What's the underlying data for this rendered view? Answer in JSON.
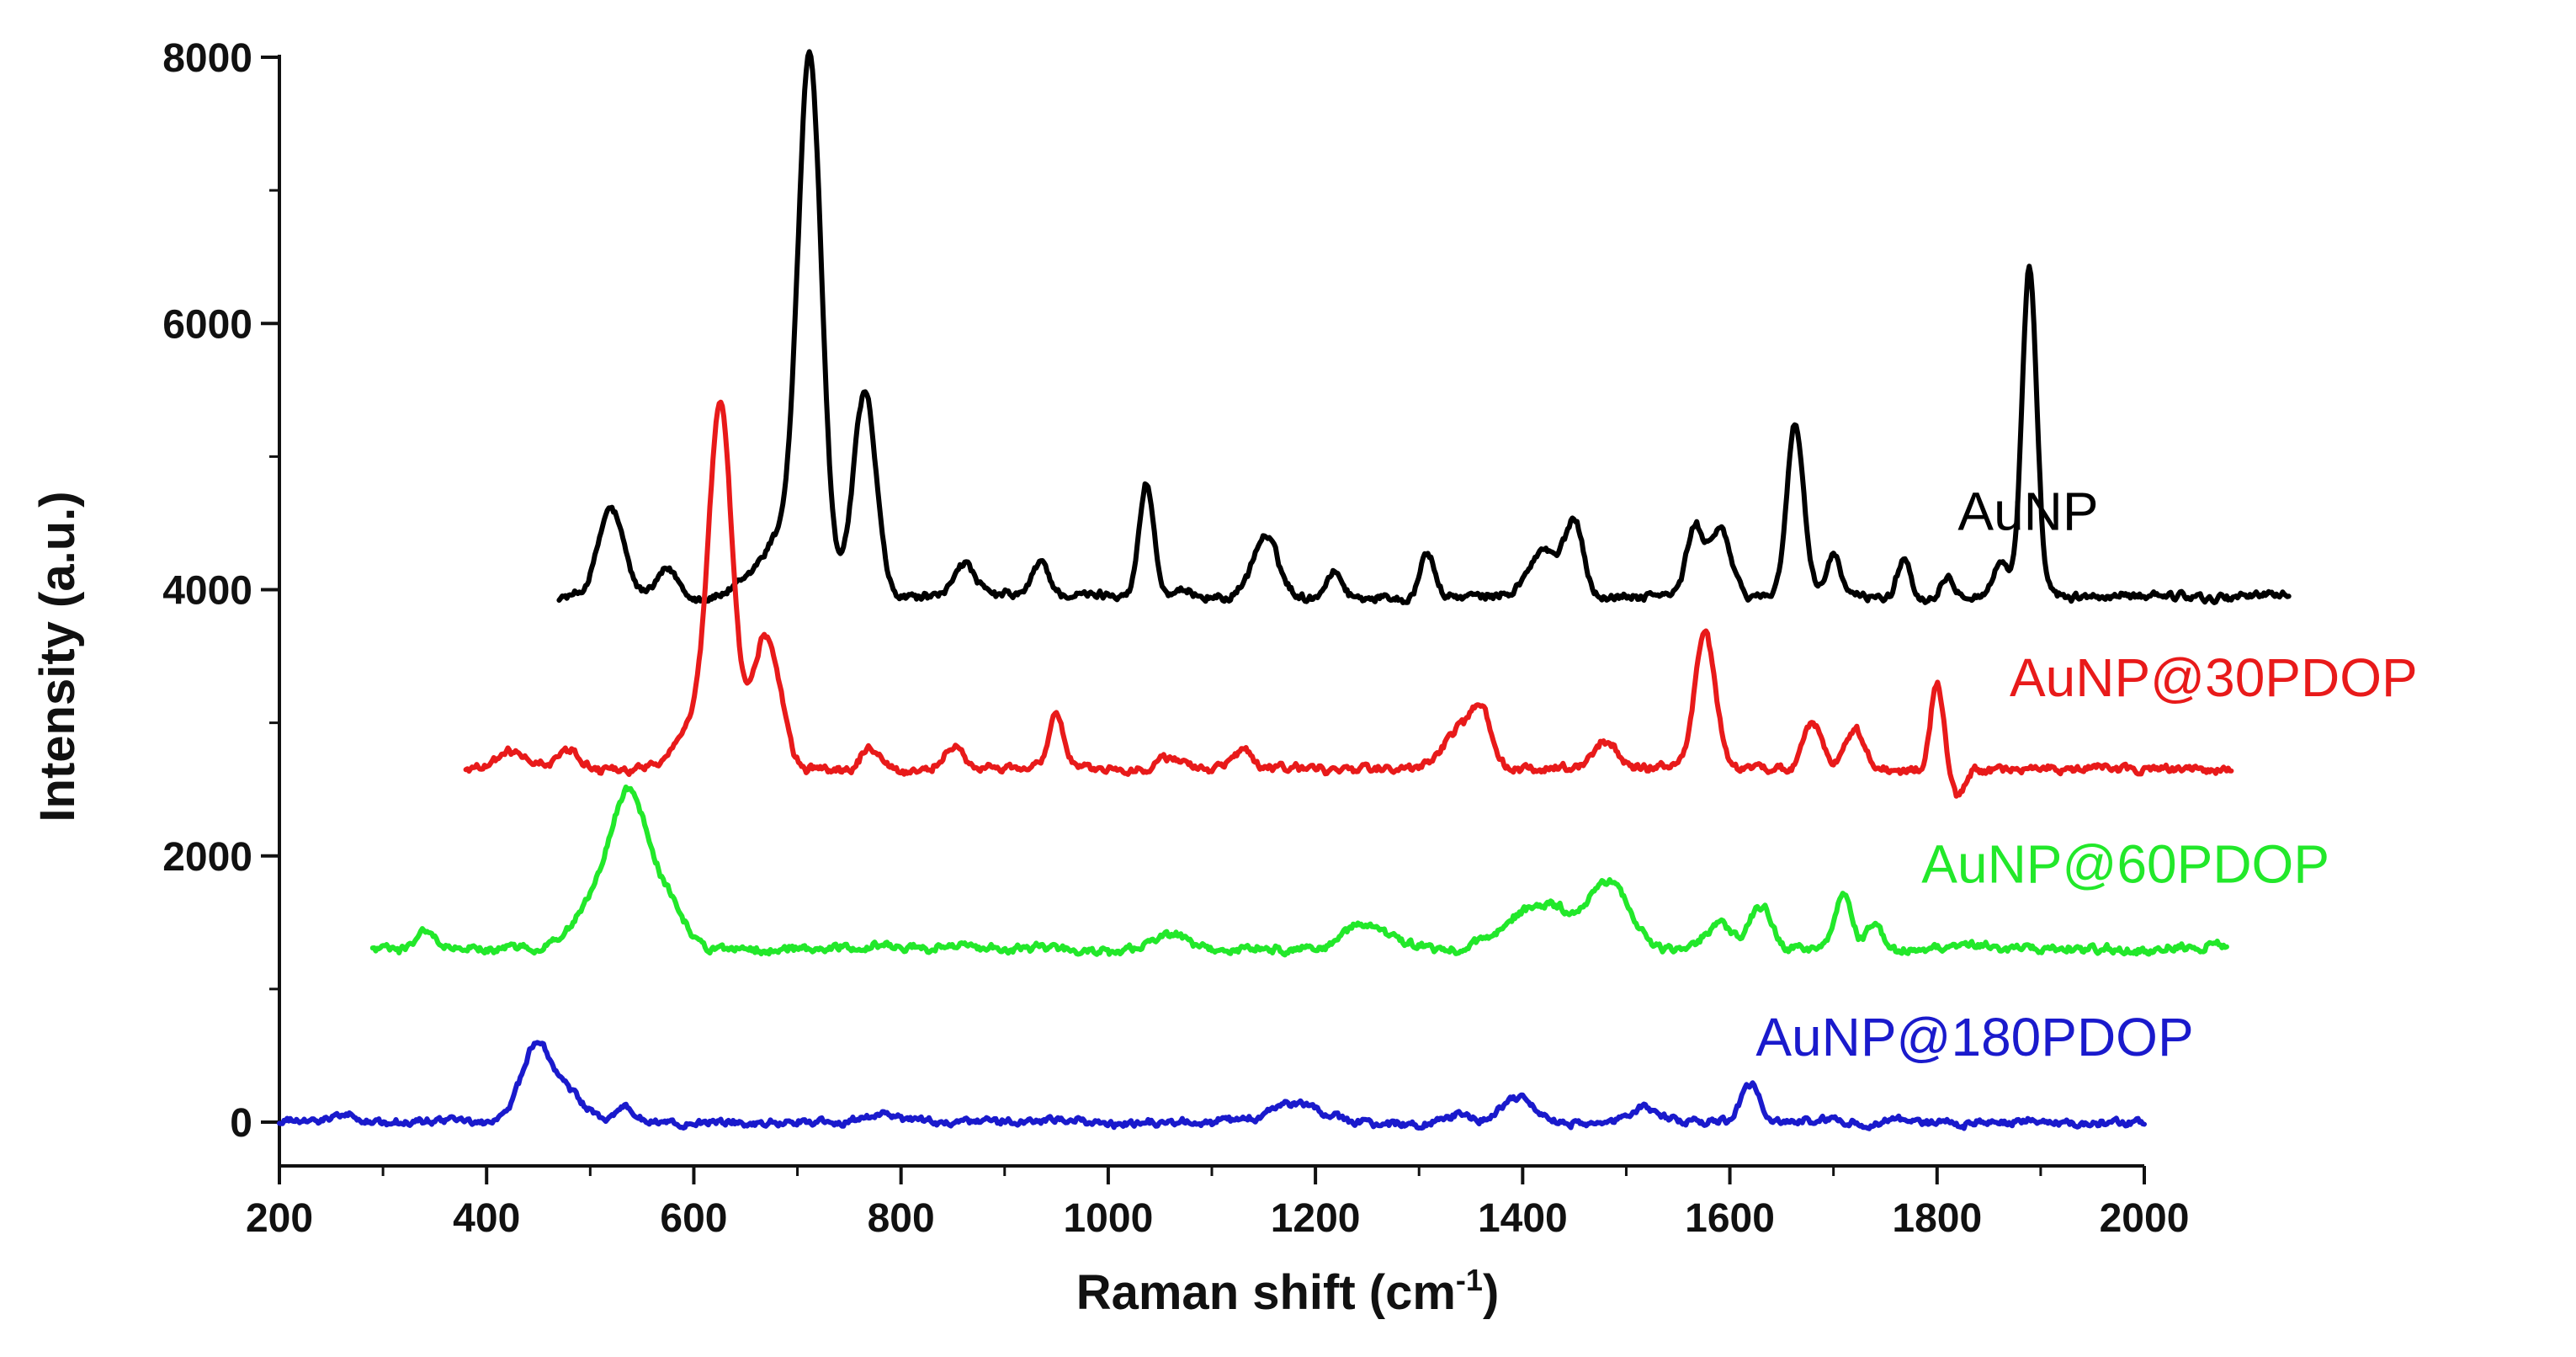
{
  "chart_data": {
    "type": "line",
    "title": "",
    "xlabel": "Raman shift (cm",
    "xlabel_sup": "-1",
    "xlabel_close": ")",
    "ylabel": "Intensity (a.u.)",
    "xlim": [
      200,
      2000
    ],
    "ylim": [
      -300,
      8000
    ],
    "x_ticks": [
      "200",
      "400",
      "600",
      "800",
      "1000",
      "1200",
      "1400",
      "1600",
      "1800",
      "2000"
    ],
    "y_ticks": [
      "0",
      "2000",
      "4000",
      "6000",
      "8000"
    ],
    "grid": false,
    "series": [
      {
        "name": "AuNP",
        "color": "#000000",
        "label_x": 1820,
        "label_y": 4450,
        "baseline": 3950,
        "x_range": [
          470,
          2140
        ],
        "noise": 45,
        "peaks": [
          [
            520,
            650,
            12
          ],
          [
            575,
            200,
            10
          ],
          [
            712,
            3750,
            11
          ],
          [
            690,
            500,
            25
          ],
          [
            765,
            1550,
            11
          ],
          [
            860,
            250,
            10
          ],
          [
            935,
            250,
            8
          ],
          [
            1037,
            850,
            7
          ],
          [
            1152,
            450,
            12
          ],
          [
            1218,
            200,
            8
          ],
          [
            1308,
            350,
            7
          ],
          [
            1420,
            350,
            14
          ],
          [
            1450,
            550,
            9
          ],
          [
            1566,
            500,
            8
          ],
          [
            1590,
            500,
            10
          ],
          [
            1663,
            1300,
            8
          ],
          [
            1700,
            300,
            7
          ],
          [
            1768,
            300,
            6
          ],
          [
            1810,
            150,
            6
          ],
          [
            1862,
            250,
            8
          ],
          [
            1889,
            2450,
            7
          ]
        ]
      },
      {
        "name": "AuNP@30PDOP",
        "color": "#e81a1a",
        "label_x": 1870,
        "label_y": 3200,
        "baseline": 2650,
        "x_range": [
          380,
          2085
        ],
        "noise": 45,
        "peaks": [
          [
            425,
            120,
            12
          ],
          [
            480,
            150,
            12
          ],
          [
            626,
            2500,
            11
          ],
          [
            605,
            400,
            20
          ],
          [
            670,
            1000,
            14
          ],
          [
            770,
            180,
            8
          ],
          [
            850,
            150,
            10
          ],
          [
            950,
            400,
            8
          ],
          [
            1060,
            100,
            10
          ],
          [
            1130,
            150,
            8
          ],
          [
            1340,
            300,
            15
          ],
          [
            1360,
            350,
            9
          ],
          [
            1480,
            200,
            12
          ],
          [
            1576,
            1000,
            10
          ],
          [
            1680,
            350,
            9
          ],
          [
            1720,
            300,
            10
          ],
          [
            1800,
            650,
            6
          ],
          [
            1820,
            -200,
            6
          ]
        ]
      },
      {
        "name": "AuNP@60PDOP",
        "color": "#22e82a",
        "label_x": 1785,
        "label_y": 1800,
        "baseline": 1300,
        "x_range": [
          290,
          2080
        ],
        "noise": 45,
        "peaks": [
          [
            340,
            120,
            10
          ],
          [
            500,
            300,
            20
          ],
          [
            538,
            1150,
            18
          ],
          [
            575,
            300,
            15
          ],
          [
            1060,
            120,
            15
          ],
          [
            1250,
            200,
            18
          ],
          [
            1420,
            350,
            30
          ],
          [
            1485,
            500,
            18
          ],
          [
            1590,
            200,
            12
          ],
          [
            1630,
            300,
            10
          ],
          [
            1710,
            400,
            8
          ],
          [
            1740,
            200,
            7
          ]
        ]
      },
      {
        "name": "AuNP@180PDOP",
        "color": "#1a1acc",
        "label_x": 1625,
        "label_y": 500,
        "baseline": 0,
        "x_range": [
          200,
          2000
        ],
        "noise": 40,
        "peaks": [
          [
            265,
            80,
            10
          ],
          [
            448,
            580,
            15
          ],
          [
            480,
            200,
            15
          ],
          [
            535,
            100,
            8
          ],
          [
            780,
            80,
            8
          ],
          [
            1180,
            150,
            25
          ],
          [
            1340,
            60,
            10
          ],
          [
            1395,
            180,
            15
          ],
          [
            1520,
            100,
            15
          ],
          [
            1620,
            280,
            9
          ]
        ]
      }
    ]
  }
}
